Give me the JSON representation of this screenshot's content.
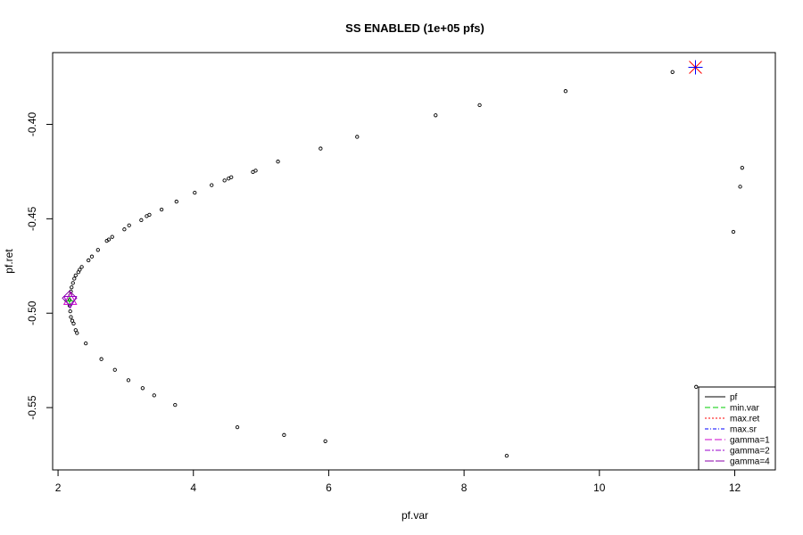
{
  "chart_data": {
    "type": "scatter",
    "title": "SS ENABLED (1e+05 pfs)",
    "xlabel": "pf.var",
    "ylabel": "pf.ret",
    "xlim": [
      1.92,
      12.6
    ],
    "ylim": [
      -0.583,
      -0.362
    ],
    "xticks": [
      2,
      4,
      6,
      8,
      10,
      12
    ],
    "yticks": [
      -0.55,
      -0.5,
      -0.45,
      -0.4
    ],
    "ytick_labels": [
      "-0.55",
      "-0.50",
      "-0.45",
      "-0.40"
    ],
    "grid": false,
    "legend_position": "bottom-right",
    "series": [
      {
        "name": "pf",
        "color": "#000000",
        "marker": "open-circle",
        "points": [
          [
            11.08,
            -0.3723
          ],
          [
            9.5,
            -0.3824
          ],
          [
            8.23,
            -0.3898
          ],
          [
            7.58,
            -0.3952
          ],
          [
            6.42,
            -0.4066
          ],
          [
            5.88,
            -0.4128
          ],
          [
            5.25,
            -0.4197
          ],
          [
            4.92,
            -0.4245
          ],
          [
            4.88,
            -0.4252
          ],
          [
            4.56,
            -0.428
          ],
          [
            4.52,
            -0.4287
          ],
          [
            4.46,
            -0.4297
          ],
          [
            4.27,
            -0.4322
          ],
          [
            4.02,
            -0.4362
          ],
          [
            3.75,
            -0.4409
          ],
          [
            3.53,
            -0.4451
          ],
          [
            3.35,
            -0.4479
          ],
          [
            3.31,
            -0.4486
          ],
          [
            3.23,
            -0.4507
          ],
          [
            3.05,
            -0.4535
          ],
          [
            2.98,
            -0.4556
          ],
          [
            2.8,
            -0.4596
          ],
          [
            2.75,
            -0.461
          ],
          [
            2.72,
            -0.4617
          ],
          [
            2.59,
            -0.4665
          ],
          [
            2.5,
            -0.47
          ],
          [
            2.45,
            -0.472
          ],
          [
            2.35,
            -0.4755
          ],
          [
            2.32,
            -0.477
          ],
          [
            2.3,
            -0.4783
          ],
          [
            2.26,
            -0.48
          ],
          [
            2.24,
            -0.4817
          ],
          [
            2.22,
            -0.484
          ],
          [
            2.2,
            -0.4863
          ],
          [
            2.19,
            -0.4885
          ],
          [
            2.18,
            -0.4905
          ],
          [
            2.17,
            -0.493
          ],
          [
            2.17,
            -0.496
          ],
          [
            2.18,
            -0.499
          ],
          [
            2.19,
            -0.502
          ],
          [
            2.21,
            -0.504
          ],
          [
            2.23,
            -0.5055
          ],
          [
            2.26,
            -0.509
          ],
          [
            2.28,
            -0.5105
          ],
          [
            2.41,
            -0.516
          ],
          [
            2.64,
            -0.5243
          ],
          [
            2.84,
            -0.53
          ],
          [
            3.04,
            -0.5355
          ],
          [
            3.25,
            -0.5397
          ],
          [
            3.42,
            -0.5435
          ],
          [
            3.73,
            -0.5486
          ],
          [
            4.65,
            -0.5604
          ],
          [
            5.34,
            -0.5645
          ],
          [
            5.95,
            -0.5678
          ],
          [
            8.63,
            -0.5755
          ],
          [
            11.98,
            -0.4569
          ],
          [
            12.08,
            -0.433
          ],
          [
            12.11,
            -0.423
          ],
          [
            11.43,
            -0.539
          ]
        ]
      },
      {
        "name": "min.var",
        "color": "#00cc00",
        "points": [
          [
            2.17,
            -0.4935
          ]
        ]
      },
      {
        "name": "max.ret",
        "color": "#ff0000",
        "points": [
          [
            11.42,
            -0.3698
          ]
        ]
      },
      {
        "name": "max.sr",
        "color": "#0000ff",
        "points": [
          [
            11.42,
            -0.3698
          ]
        ]
      },
      {
        "name": "gamma=1",
        "color": "#cc00cc",
        "points": [
          [
            2.18,
            -0.493
          ]
        ]
      },
      {
        "name": "gamma=2",
        "color": "#9900cc",
        "points": [
          [
            2.18,
            -0.4935
          ]
        ]
      },
      {
        "name": "gamma=4",
        "color": "#8800aa",
        "points": [
          [
            2.17,
            -0.492
          ]
        ]
      }
    ],
    "legend": [
      {
        "label": "pf",
        "color": "#000000",
        "dash": ""
      },
      {
        "label": "min.var",
        "color": "#00cc00",
        "dash": "6,3"
      },
      {
        "label": "max.ret",
        "color": "#ff0000",
        "dash": "2,2"
      },
      {
        "label": "max.sr",
        "color": "#0000ff",
        "dash": "4,2,1,2"
      },
      {
        "label": "gamma=1",
        "color": "#cc00cc",
        "dash": "8,3"
      },
      {
        "label": "gamma=2",
        "color": "#9900cc",
        "dash": "6,2,2,2"
      },
      {
        "label": "gamma=4",
        "color": "#8800aa",
        "dash": "10,2"
      }
    ]
  }
}
